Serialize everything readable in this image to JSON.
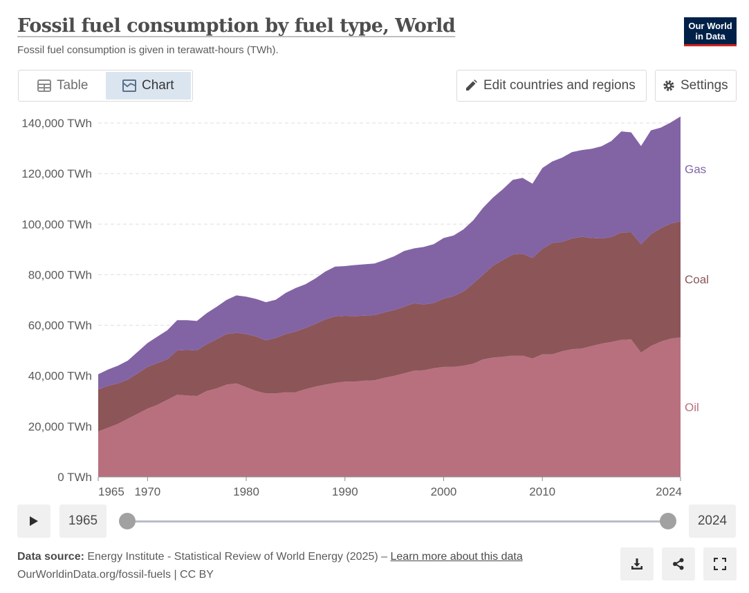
{
  "header": {
    "title": "Fossil fuel consumption by fuel type, World",
    "subtitle": "Fossil fuel consumption is given in terawatt-hours (TWh).",
    "logo_line1": "Our World",
    "logo_line2": "in Data"
  },
  "tabs": [
    {
      "label": "Table",
      "icon": "table-icon",
      "active": false
    },
    {
      "label": "Chart",
      "icon": "chart-icon",
      "active": true
    }
  ],
  "toolbar": {
    "edit_label": "Edit countries and regions",
    "settings_label": "Settings"
  },
  "colors": {
    "oil": "#b8707e",
    "coal": "#8c5558",
    "gas": "#8264a5",
    "grid": "#dddddd"
  },
  "chart_data": {
    "type": "area",
    "stacked": true,
    "title": "Fossil fuel consumption by fuel type, World",
    "ylabel": "",
    "unit": "TWh",
    "ylim": [
      0,
      140000
    ],
    "yticks": [
      "0 TWh",
      "20,000 TWh",
      "40,000 TWh",
      "60,000 TWh",
      "80,000 TWh",
      "100,000 TWh",
      "120,000 TWh",
      "140,000 TWh"
    ],
    "ytick_values": [
      0,
      20000,
      40000,
      60000,
      80000,
      100000,
      120000,
      140000
    ],
    "xticks": [
      1965,
      1970,
      1980,
      1990,
      2000,
      2010,
      2024
    ],
    "xlim": [
      1965,
      2024
    ],
    "x": [
      1965,
      1966,
      1967,
      1968,
      1969,
      1970,
      1971,
      1972,
      1973,
      1974,
      1975,
      1976,
      1977,
      1978,
      1979,
      1980,
      1981,
      1982,
      1983,
      1984,
      1985,
      1986,
      1987,
      1988,
      1989,
      1990,
      1991,
      1992,
      1993,
      1994,
      1995,
      1996,
      1997,
      1998,
      1999,
      2000,
      2001,
      2002,
      2003,
      2004,
      2005,
      2006,
      2007,
      2008,
      2009,
      2010,
      2011,
      2012,
      2013,
      2014,
      2015,
      2016,
      2017,
      2018,
      2019,
      2020,
      2021,
      2022,
      2023,
      2024
    ],
    "series": [
      {
        "name": "Oil",
        "values": [
          18000,
          19500,
          21000,
          23000,
          25000,
          27000,
          28500,
          30500,
          32500,
          32200,
          32000,
          34000,
          35000,
          36500,
          37000,
          35500,
          34000,
          33000,
          33000,
          33500,
          33500,
          34700,
          35700,
          36500,
          37200,
          37700,
          37700,
          38100,
          38200,
          39200,
          40000,
          41000,
          42000,
          42200,
          43000,
          43500,
          43500,
          44000,
          44800,
          46500,
          47200,
          47500,
          48000,
          48000,
          46800,
          48500,
          48500,
          49700,
          50500,
          50800,
          51800,
          52700,
          53400,
          54200,
          54400,
          49200,
          51800,
          53500,
          54700,
          55200
        ]
      },
      {
        "name": "Coal",
        "values": [
          16600,
          16500,
          16000,
          15500,
          16000,
          16500,
          16500,
          16000,
          17500,
          18000,
          18000,
          18500,
          19500,
          20000,
          20000,
          21000,
          21500,
          21000,
          22000,
          23000,
          24000,
          24200,
          24800,
          25800,
          26300,
          26000,
          25900,
          25700,
          25800,
          25900,
          26000,
          26300,
          26700,
          26000,
          25800,
          27000,
          28000,
          29300,
          31700,
          33500,
          36300,
          38300,
          40000,
          40300,
          39800,
          41700,
          44000,
          43300,
          43800,
          44200,
          42700,
          41600,
          41500,
          42500,
          42400,
          42800,
          44200,
          44900,
          45500,
          45900
        ]
      },
      {
        "name": "Gas",
        "values": [
          6000,
          6500,
          7000,
          7500,
          8500,
          9500,
          10500,
          11500,
          12000,
          11800,
          11700,
          12300,
          12800,
          13500,
          14800,
          14800,
          14900,
          15100,
          15100,
          16300,
          17200,
          17300,
          18000,
          18900,
          19700,
          19700,
          20200,
          20300,
          20400,
          20700,
          21300,
          22100,
          21700,
          22800,
          23300,
          24000,
          24000,
          24600,
          25000,
          26500,
          27000,
          28000,
          29500,
          30000,
          29400,
          32000,
          32300,
          33300,
          34200,
          34300,
          35300,
          36500,
          38000,
          40000,
          39500,
          38900,
          41100,
          39800,
          40000,
          41500
        ]
      }
    ],
    "series_labels": [
      "Gas",
      "Coal",
      "Oil"
    ],
    "grid": true
  },
  "timeline": {
    "start_year": "1965",
    "end_year": "2024",
    "start_fraction": 0,
    "end_fraction": 1
  },
  "footer": {
    "source_label": "Data source:",
    "source_text": "Energy Institute - Statistical Review of World Energy (2025) –",
    "learn_more": "Learn more about this data",
    "url_text": "OurWorldinData.org/fossil-fuels | CC BY"
  }
}
